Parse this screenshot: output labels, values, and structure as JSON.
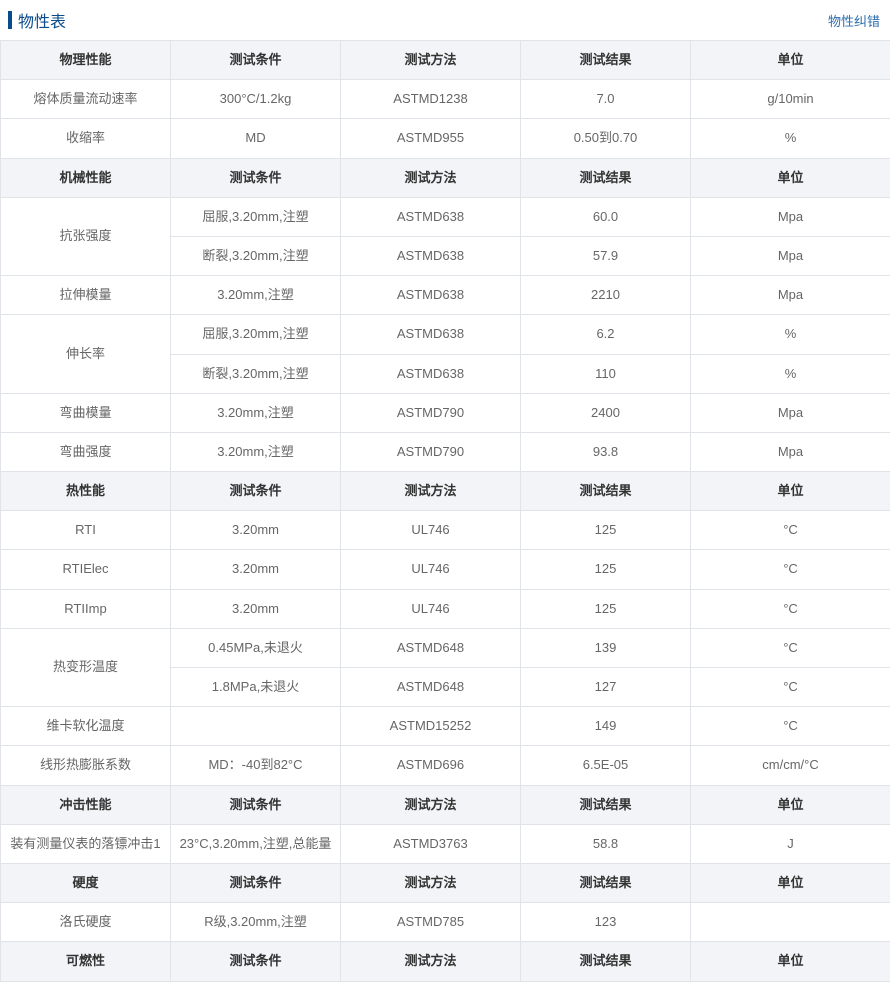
{
  "header": {
    "title": "物性表",
    "link": "物性纠错"
  },
  "columns": {
    "c1": "测试条件",
    "c2": "测试方法",
    "c3": "测试结果",
    "c4": "单位"
  },
  "sections": [
    {
      "name": "物理性能",
      "rows": [
        {
          "prop": "熔体质量流动速率",
          "cond": "300°C/1.2kg",
          "method": "ASTMD1238",
          "result": "7.0",
          "unit": "g/10min"
        },
        {
          "prop": "收缩率",
          "cond": "MD",
          "method": "ASTMD955",
          "result": "0.50到0.70",
          "unit": "%"
        }
      ]
    },
    {
      "name": "机械性能",
      "rows": [
        {
          "prop": "抗张强度",
          "cond": "屈服,3.20mm,注塑",
          "method": "ASTMD638",
          "result": "60.0",
          "unit": "Mpa",
          "rowspan": 2
        },
        {
          "cond": "断裂,3.20mm,注塑",
          "method": "ASTMD638",
          "result": "57.9",
          "unit": "Mpa"
        },
        {
          "prop": "拉伸模量",
          "cond": "3.20mm,注塑",
          "method": "ASTMD638",
          "result": "2210",
          "unit": "Mpa"
        },
        {
          "prop": "伸长率",
          "cond": "屈服,3.20mm,注塑",
          "method": "ASTMD638",
          "result": "6.2",
          "unit": "%",
          "rowspan": 2
        },
        {
          "cond": "断裂,3.20mm,注塑",
          "method": "ASTMD638",
          "result": "110",
          "unit": "%"
        },
        {
          "prop": "弯曲模量",
          "cond": "3.20mm,注塑",
          "method": "ASTMD790",
          "result": "2400",
          "unit": "Mpa"
        },
        {
          "prop": "弯曲强度",
          "cond": "3.20mm,注塑",
          "method": "ASTMD790",
          "result": "93.8",
          "unit": "Mpa"
        }
      ]
    },
    {
      "name": "热性能",
      "rows": [
        {
          "prop": "RTI",
          "cond": "3.20mm",
          "method": "UL746",
          "result": "125",
          "unit": "°C"
        },
        {
          "prop": "RTIElec",
          "cond": "3.20mm",
          "method": "UL746",
          "result": "125",
          "unit": "°C"
        },
        {
          "prop": "RTIImp",
          "cond": "3.20mm",
          "method": "UL746",
          "result": "125",
          "unit": "°C"
        },
        {
          "prop": "热变形温度",
          "cond": "0.45MPa,未退火",
          "method": "ASTMD648",
          "result": "139",
          "unit": "°C",
          "rowspan": 2
        },
        {
          "cond": "1.8MPa,未退火",
          "method": "ASTMD648",
          "result": "127",
          "unit": "°C"
        },
        {
          "prop": "维卡软化温度",
          "cond": "",
          "method": "ASTMD15252",
          "result": "149",
          "unit": "°C"
        },
        {
          "prop": "线形热膨胀系数",
          "cond": "MD：-40到82°C",
          "method": "ASTMD696",
          "result": "6.5E-05",
          "unit": "cm/cm/°C"
        }
      ]
    },
    {
      "name": "冲击性能",
      "rows": [
        {
          "prop": "装有测量仪表的落镖冲击1",
          "cond": "23°C,3.20mm,注塑,总能量",
          "method": "ASTMD3763",
          "result": "58.8",
          "unit": "J"
        }
      ]
    },
    {
      "name": "硬度",
      "rows": [
        {
          "prop": "洛氏硬度",
          "cond": "R级,3.20mm,注塑",
          "method": "ASTMD785",
          "result": "123",
          "unit": ""
        }
      ]
    },
    {
      "name": "可燃性",
      "rows": []
    }
  ]
}
